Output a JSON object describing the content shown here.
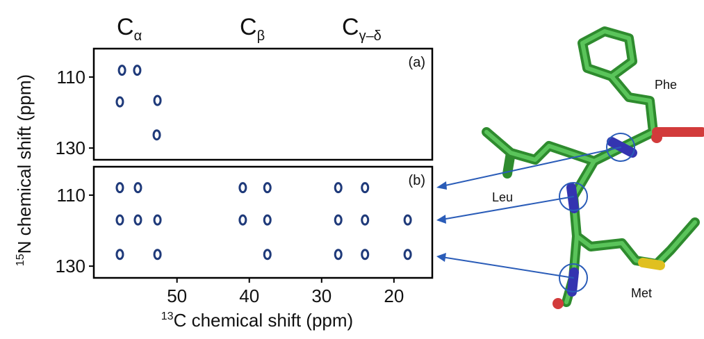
{
  "chart_data": [
    {
      "type": "scatter",
      "label": "(a)",
      "color": "#1f3a7a",
      "x": [
        57.6,
        55.5,
        57.9,
        52.7,
        52.8
      ],
      "y": [
        108.1,
        108.1,
        117.0,
        116.6,
        126.3
      ],
      "xlim": [
        61.5,
        14.7
      ],
      "ylim": [
        102,
        133.3
      ],
      "xticks": [],
      "yticks": [
        110,
        130
      ]
    },
    {
      "type": "scatter",
      "label": "(b)",
      "color": "#1f3a7a",
      "x": [
        57.9,
        55.4,
        40.9,
        37.5,
        27.7,
        24.0,
        57.9,
        55.4,
        52.7,
        40.9,
        37.5,
        27.7,
        24.0,
        18.1,
        57.9,
        52.7,
        37.5,
        27.7,
        24.0,
        18.1
      ],
      "y": [
        107.9,
        107.9,
        107.9,
        107.9,
        107.9,
        107.9,
        117.0,
        117.0,
        117.0,
        117.0,
        117.0,
        117.0,
        117.0,
        117.0,
        126.7,
        126.7,
        126.7,
        126.7,
        126.7,
        126.7
      ],
      "xlim": [
        61.5,
        14.7
      ],
      "ylim": [
        102,
        133.3
      ],
      "xticks": [
        50,
        40,
        30,
        20
      ],
      "yticks": [
        110,
        130
      ]
    }
  ],
  "headers": [
    {
      "base": "C",
      "sub": "α"
    },
    {
      "base": "C",
      "sub": "β"
    },
    {
      "base": "C",
      "sub": "γ–δ"
    }
  ],
  "x_label": {
    "sup": "13",
    "text": "C chemical shift  (ppm)"
  },
  "y_label": {
    "sup": "15",
    "text": "N chemical shift  (ppm)"
  },
  "residues": [
    "Phe",
    "Leu",
    "Met"
  ]
}
